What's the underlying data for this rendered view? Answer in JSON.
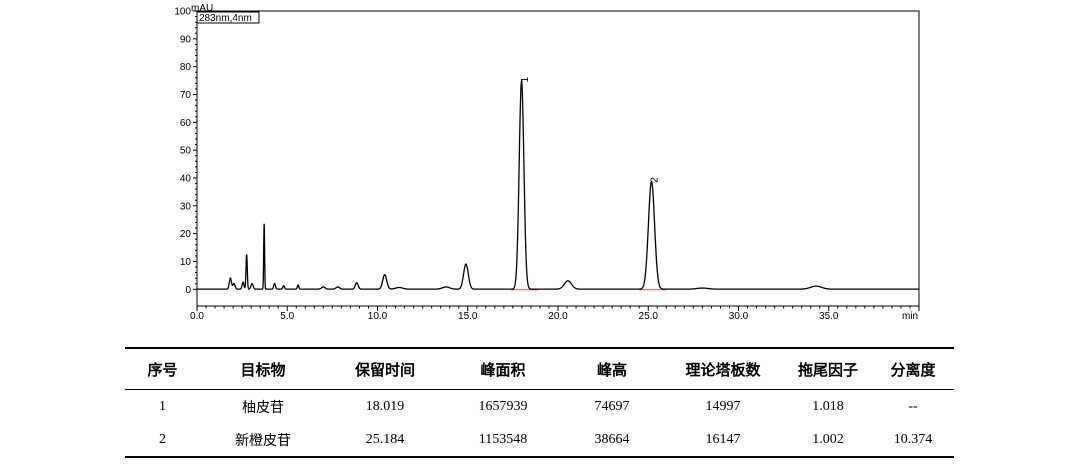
{
  "chart_data": {
    "type": "line",
    "title": "",
    "ylabel": "mAU",
    "xlabel": "min",
    "legend_text": "283nm,4nm",
    "xlim": [
      0,
      40
    ],
    "ylim": [
      -6,
      100
    ],
    "x_ticks": [
      0,
      5,
      10,
      15,
      20,
      25,
      30,
      35
    ],
    "x_tick_labels": [
      "0.0",
      "5.0",
      "10.0",
      "15.0",
      "20.0",
      "25.0",
      "30.0",
      "35.0"
    ],
    "y_ticks": [
      0,
      10,
      20,
      30,
      40,
      50,
      60,
      70,
      80,
      90,
      100
    ],
    "y_tick_labels": [
      "0",
      "10",
      "20",
      "30",
      "40",
      "50",
      "60",
      "70",
      "80",
      "90",
      "100"
    ],
    "peaks": [
      {
        "center": 1.85,
        "height": 4,
        "width": 0.06
      },
      {
        "center": 2.05,
        "height": 2,
        "width": 0.06
      },
      {
        "center": 2.55,
        "height": 2.5,
        "width": 0.05
      },
      {
        "center": 2.75,
        "height": 12.5,
        "width": 0.035
      },
      {
        "center": 3.05,
        "height": 2,
        "width": 0.06
      },
      {
        "center": 3.72,
        "height": 23.5,
        "width": 0.025
      },
      {
        "center": 4.3,
        "height": 2,
        "width": 0.05
      },
      {
        "center": 4.8,
        "height": 1.2,
        "width": 0.05
      },
      {
        "center": 5.6,
        "height": 1.5,
        "width": 0.04
      },
      {
        "center": 7.0,
        "height": 0.8,
        "width": 0.1
      },
      {
        "center": 7.8,
        "height": 0.8,
        "width": 0.1
      },
      {
        "center": 8.85,
        "height": 2.3,
        "width": 0.08
      },
      {
        "center": 10.4,
        "height": 5.2,
        "width": 0.11
      },
      {
        "center": 11.2,
        "height": 0.6,
        "width": 0.2
      },
      {
        "center": 13.8,
        "height": 0.8,
        "width": 0.2
      },
      {
        "center": 14.9,
        "height": 9,
        "width": 0.13
      },
      {
        "center": 17.98,
        "height": 74.7,
        "width": 0.13
      },
      {
        "center": 20.55,
        "height": 3,
        "width": 0.2
      },
      {
        "center": 25.18,
        "height": 38.7,
        "width": 0.17
      },
      {
        "center": 28.0,
        "height": 0.4,
        "width": 0.3
      },
      {
        "center": 34.3,
        "height": 1.1,
        "width": 0.3
      }
    ],
    "peak_labels": [
      {
        "x": 18.019,
        "y": 74.697,
        "text": "1"
      },
      {
        "x": 25.184,
        "y": 38.664,
        "text": "2"
      }
    ],
    "baseline_segments": [
      [
        17.4,
        18.9
      ],
      [
        24.5,
        26.0
      ]
    ]
  },
  "table": {
    "headers": [
      "序号",
      "目标物",
      "保留时间",
      "峰面积",
      "峰高",
      "理论塔板数",
      "拖尾因子",
      "分离度"
    ],
    "rows": [
      [
        "1",
        "柚皮苷",
        "18.019",
        "1657939",
        "74697",
        "14997",
        "1.018",
        "--"
      ],
      [
        "2",
        "新橙皮苷",
        "25.184",
        "1153548",
        "38664",
        "16147",
        "1.002",
        "10.374"
      ]
    ]
  }
}
